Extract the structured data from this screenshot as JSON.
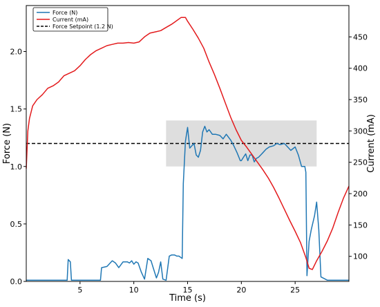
{
  "chart_data": {
    "type": "line",
    "xlabel": "Time (s)",
    "ylabel": "Force (N)",
    "y2label": "Current (mA)",
    "xlim": [
      0,
      30
    ],
    "ylim": [
      0,
      2.4
    ],
    "y2lim": [
      60,
      500
    ],
    "x_ticks": [
      5,
      10,
      15,
      20,
      25
    ],
    "y_ticks": [
      0.0,
      0.5,
      1.0,
      1.5,
      2.0
    ],
    "y2_ticks": [
      100,
      150,
      200,
      250,
      300,
      350,
      400,
      450
    ],
    "x_tick_labels": [
      "5",
      "10",
      "15",
      "20",
      "25"
    ],
    "y_tick_labels": [
      "0.0",
      "0.5",
      "1.0",
      "1.5",
      "2.0"
    ],
    "y2_tick_labels": [
      "100",
      "150",
      "200",
      "250",
      "300",
      "350",
      "400",
      "450"
    ],
    "grid": false,
    "legend_position": "upper-left",
    "legend": [
      {
        "label": "Force (N)",
        "color": "#1f77b4",
        "style": "solid"
      },
      {
        "label": "Current (mA)",
        "color": "#e31a1c",
        "style": "solid"
      },
      {
        "label": "Force Setpoint (1.2 N)",
        "color": "#000000",
        "style": "dashed"
      }
    ],
    "setpoint": {
      "y": 1.2,
      "color": "#000000"
    },
    "band": {
      "x": [
        13,
        27
      ],
      "y": [
        1.0,
        1.4
      ],
      "color": "#d3d3d3"
    },
    "series": [
      {
        "name": "Force (N)",
        "axis": "left",
        "color": "#1f77b4",
        "x": [
          0.0,
          1.0,
          2.0,
          3.0,
          3.8,
          3.9,
          4.1,
          4.2,
          4.5,
          5.0,
          6.0,
          6.9,
          7.0,
          7.5,
          8.0,
          8.3,
          8.6,
          9.0,
          9.4,
          9.6,
          9.8,
          10.0,
          10.2,
          10.4,
          10.7,
          11.0,
          11.3,
          11.6,
          11.8,
          12.1,
          12.3,
          12.5,
          12.7,
          13.0,
          13.3,
          13.5,
          13.8,
          14.0,
          14.2,
          14.5,
          14.6,
          14.8,
          15.0,
          15.2,
          15.4,
          15.6,
          15.8,
          16.0,
          16.2,
          16.4,
          16.6,
          16.8,
          17.0,
          17.3,
          17.6,
          18.0,
          18.3,
          18.6,
          19.0,
          19.3,
          19.6,
          19.9,
          20.0,
          20.2,
          20.4,
          20.6,
          20.8,
          21.0,
          21.2,
          21.4,
          21.6,
          21.8,
          22.0,
          22.3,
          22.6,
          23.0,
          23.3,
          23.6,
          24.0,
          24.3,
          24.6,
          25.0,
          25.3,
          25.6,
          25.9,
          26.0,
          26.1,
          26.3,
          26.5,
          26.8,
          27.0,
          27.2,
          27.4,
          28.0,
          29.0,
          30.0
        ],
        "values": [
          0.01,
          0.01,
          0.01,
          0.01,
          0.01,
          0.19,
          0.17,
          0.01,
          0.01,
          0.01,
          0.01,
          0.01,
          0.12,
          0.13,
          0.18,
          0.16,
          0.12,
          0.17,
          0.17,
          0.16,
          0.18,
          0.15,
          0.17,
          0.16,
          0.08,
          0.02,
          0.2,
          0.18,
          0.12,
          0.03,
          0.08,
          0.17,
          0.02,
          0.01,
          0.22,
          0.23,
          0.23,
          0.22,
          0.22,
          0.2,
          0.85,
          1.22,
          1.34,
          1.16,
          1.18,
          1.2,
          1.1,
          1.08,
          1.14,
          1.3,
          1.35,
          1.3,
          1.32,
          1.28,
          1.28,
          1.27,
          1.24,
          1.28,
          1.23,
          1.18,
          1.12,
          1.05,
          1.05,
          1.08,
          1.11,
          1.05,
          1.1,
          1.1,
          1.04,
          1.07,
          1.08,
          1.1,
          1.12,
          1.15,
          1.17,
          1.18,
          1.2,
          1.19,
          1.2,
          1.17,
          1.14,
          1.17,
          1.1,
          1.0,
          1.0,
          0.95,
          0.05,
          0.35,
          0.45,
          0.57,
          0.69,
          0.45,
          0.04,
          0.01,
          0.01,
          0.01
        ]
      },
      {
        "name": "Current (mA)",
        "axis": "right",
        "color": "#e31a1c",
        "x": [
          0.0,
          0.15,
          0.3,
          0.6,
          1.0,
          1.5,
          2.0,
          2.5,
          3.0,
          3.5,
          4.0,
          4.5,
          5.0,
          5.5,
          6.0,
          6.5,
          7.0,
          7.5,
          8.0,
          8.5,
          9.0,
          9.5,
          10.0,
          10.5,
          11.0,
          11.5,
          12.0,
          12.5,
          13.0,
          13.5,
          14.0,
          14.4,
          14.8,
          15.0,
          15.5,
          16.0,
          16.5,
          17.0,
          17.5,
          18.0,
          18.5,
          19.0,
          19.5,
          20.0,
          20.5,
          21.0,
          21.5,
          22.0,
          22.5,
          23.0,
          23.5,
          24.0,
          24.5,
          25.0,
          25.5,
          26.0,
          26.3,
          26.6,
          27.0,
          27.5,
          28.0,
          28.5,
          29.0,
          29.5,
          30.0
        ],
        "values": [
          240,
          300,
          320,
          340,
          350,
          358,
          368,
          372,
          378,
          388,
          392,
          396,
          404,
          414,
          422,
          428,
          432,
          436,
          438,
          440,
          440,
          441,
          440,
          442,
          450,
          456,
          458,
          460,
          465,
          470,
          476,
          481,
          481,
          475,
          462,
          448,
          432,
          410,
          390,
          368,
          345,
          322,
          302,
          285,
          274,
          262,
          250,
          238,
          225,
          210,
          193,
          175,
          157,
          140,
          122,
          98,
          81,
          79,
          93,
          108,
          125,
          145,
          170,
          193,
          212
        ]
      }
    ]
  }
}
